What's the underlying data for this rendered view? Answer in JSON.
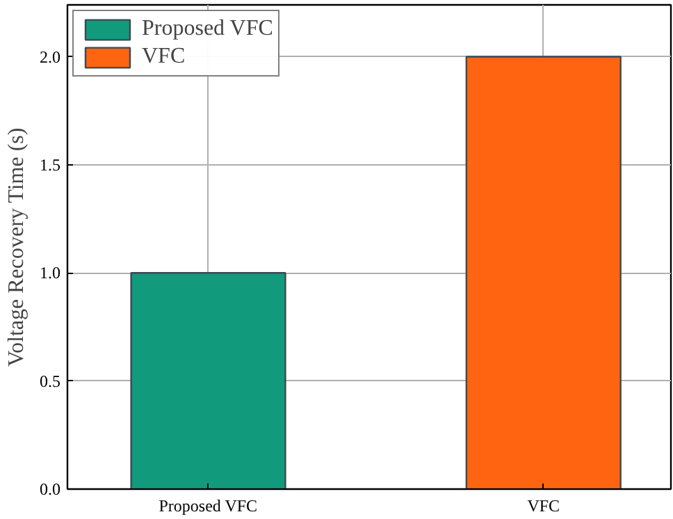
{
  "chart_data": {
    "type": "bar",
    "ylabel": "Voltage Recovery Time (s)",
    "categories": [
      "Proposed VFC",
      "VFC"
    ],
    "series": [
      {
        "name": "Proposed VFC",
        "color": "#119a7c",
        "values": [
          1.0,
          null
        ]
      },
      {
        "name": "VFC",
        "color": "#ff6410",
        "values": [
          null,
          2.0
        ]
      }
    ],
    "ylim": [
      0,
      2.24
    ],
    "yticks": [
      {
        "value": 0,
        "label": "0.0"
      },
      0.5,
      {
        "value": 1,
        "label": "1.0"
      },
      1.5,
      {
        "value": 2,
        "label": "2.0"
      }
    ],
    "grid": true,
    "legend": "top left"
  }
}
